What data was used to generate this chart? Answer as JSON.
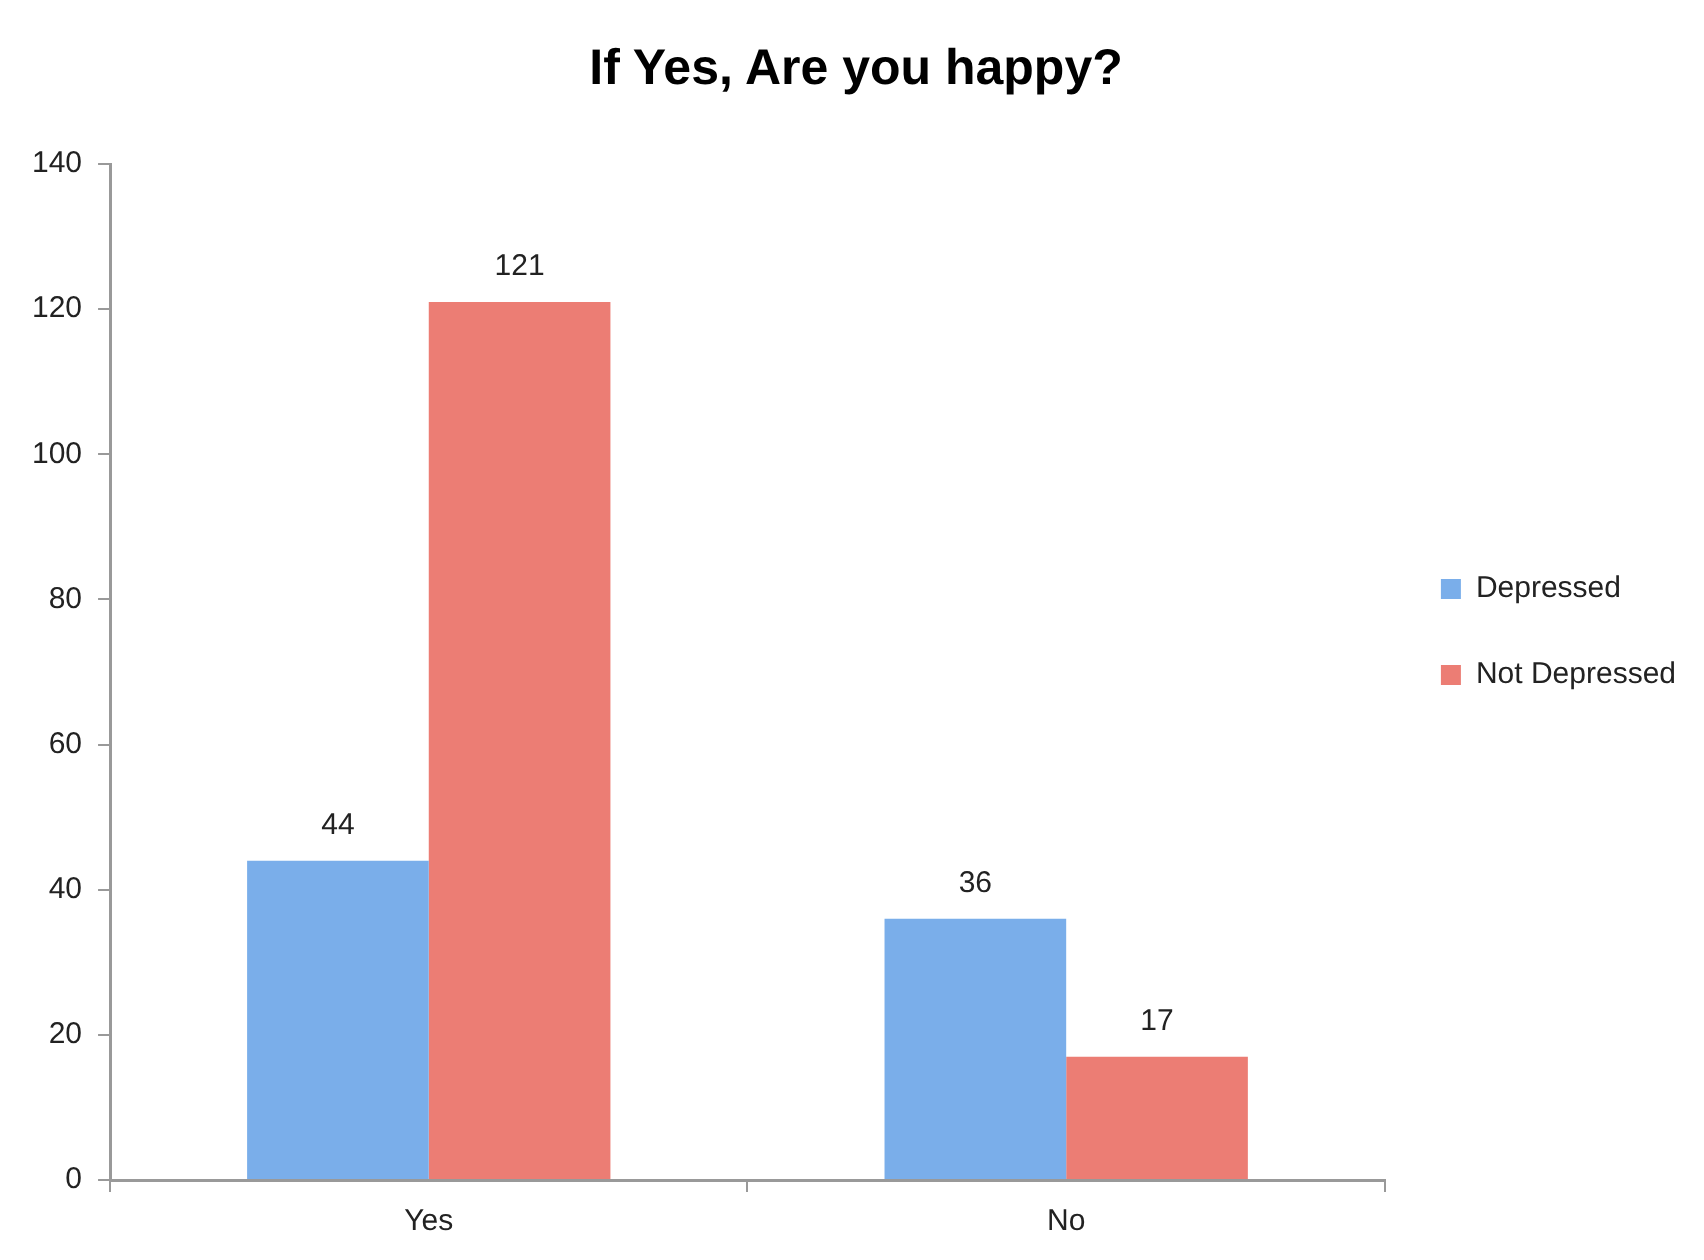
{
  "chart_data": {
    "type": "bar",
    "title": "If Yes, Are you happy?",
    "categories": [
      "Yes",
      "No"
    ],
    "series": [
      {
        "name": "Depressed",
        "color": "#7aaeea",
        "values": [
          44,
          36
        ]
      },
      {
        "name": "Not Depressed",
        "color": "#ec7d74",
        "values": [
          121,
          17
        ]
      }
    ],
    "ylim": [
      0,
      140
    ],
    "yticks": [
      0,
      20,
      40,
      60,
      80,
      100,
      120,
      140
    ],
    "data_labels": true,
    "legend": "right",
    "grid": false
  }
}
